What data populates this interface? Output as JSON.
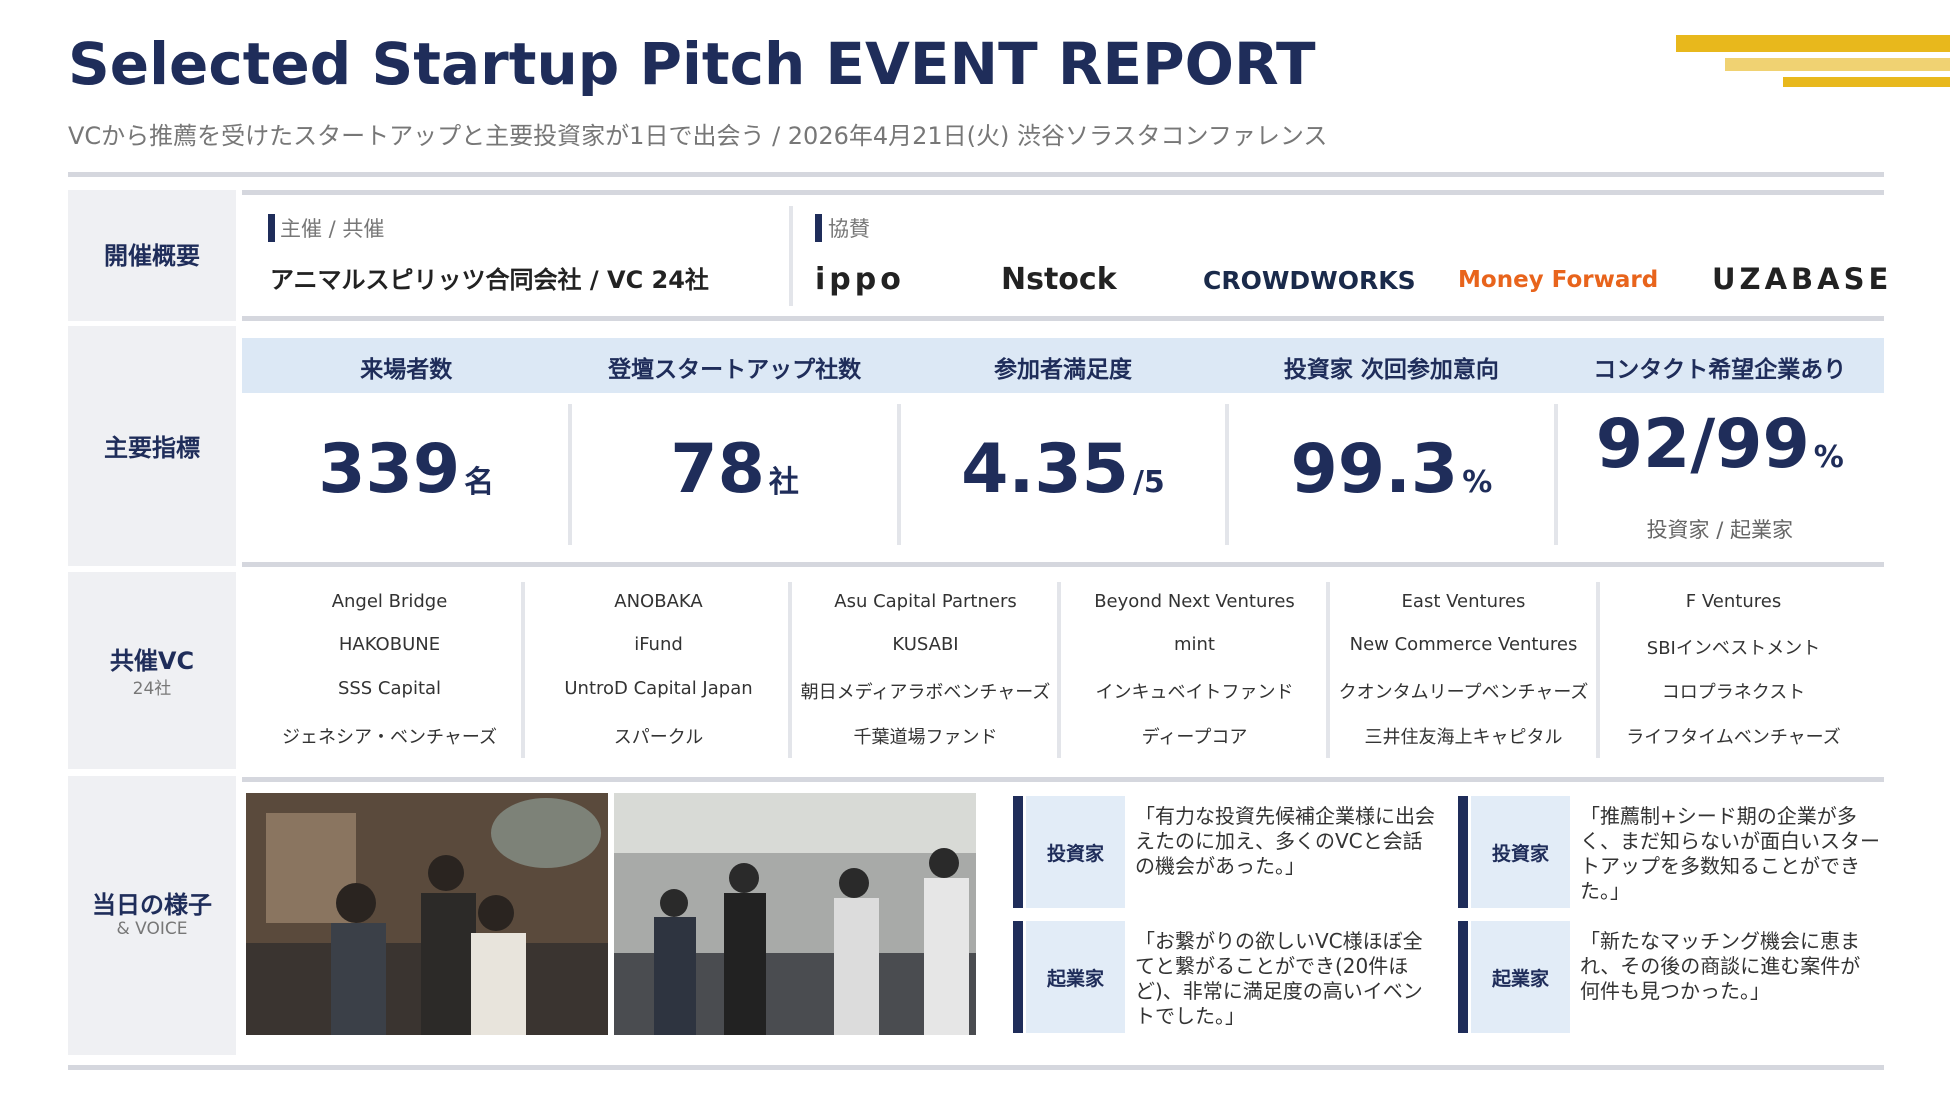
{
  "header": {
    "title": "Selected Startup Pitch EVENT REPORT",
    "subtitle": "VCから推薦を受けたスタートアップと主要投資家が1日で出会う / 2026年4月21日(火) 渋谷ソラスタコンファレンス"
  },
  "overview": {
    "label": "開催概要",
    "organizer_label": "主催 / 共催",
    "organizer": "アニマルスピリッツ合同会社 / VC 24社",
    "sponsor_label": "協賛",
    "sponsors": [
      "ippo",
      "Nstock",
      "CROWDWORKS",
      "Money Forward",
      "UZABASE"
    ]
  },
  "metrics": {
    "label": "主要指標",
    "items": [
      {
        "name": "来場者数",
        "value": "339",
        "unit": "名"
      },
      {
        "name": "登壇スタートアップ社数",
        "value": "78",
        "unit": "社"
      },
      {
        "name": "参加者満足度",
        "value": "4.35",
        "unit": "/5"
      },
      {
        "name": "投資家 次回参加意向",
        "value": "99.3",
        "unit": "%"
      },
      {
        "name": "コンタクト希望企業あり",
        "value": "92/99",
        "unit": "%",
        "note": "投資家 / 起業家"
      }
    ]
  },
  "vcs": {
    "label": "共催VC",
    "count": "24社",
    "columns": [
      [
        "Angel Bridge",
        "HAKOBUNE",
        "SSS Capital",
        "ジェネシア・ベンチャーズ"
      ],
      [
        "ANOBAKA",
        "iFund",
        "UntroD Capital Japan",
        "スパークル"
      ],
      [
        "Asu Capital Partners",
        "KUSABI",
        "朝日メディアラボベンチャーズ",
        "千葉道場ファンド"
      ],
      [
        "Beyond Next Ventures",
        "mint",
        "インキュベイトファンド",
        "ディープコア"
      ],
      [
        "East Ventures",
        "New Commerce Ventures",
        "クオンタムリープベンチャーズ",
        "三井住友海上キャピタル"
      ],
      [
        "F Ventures",
        "SBIインベストメント",
        "コロプラネクスト",
        "ライフタイムベンチャーズ"
      ]
    ]
  },
  "voice": {
    "label": "当日の様子",
    "sublabel": "& VOICE",
    "items": [
      {
        "tag": "投資家",
        "quote": "「有力な投資先候補企業様に出会えたのに加え、多くのVCと会話の機会があった。」"
      },
      {
        "tag": "起業家",
        "quote": "「お繋がりの欲しいVC様ほぼ全てと繋がることができ(20件ほど)、非常に満足度の高いイベントでした。」"
      },
      {
        "tag": "投資家",
        "quote": "「推薦制+シード期の企業が多く、まだ知らないが面白いスタートアップを多数知ることができた。」"
      },
      {
        "tag": "起業家",
        "quote": "「新たなマッチング機会に恵まれ、その後の商談に進む案件が何件も見つかった。」"
      }
    ]
  }
}
